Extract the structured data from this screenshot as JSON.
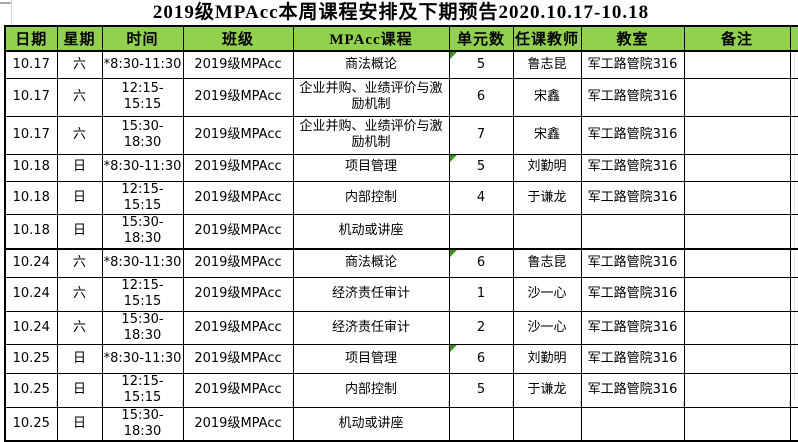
{
  "title": "2019级MPAcc本周课程安排及下期预告2020.10.17-10.18",
  "table": {
    "headers": [
      "日期",
      "星期",
      "时间",
      "班级",
      "MPAcc课程",
      "单元数",
      "任课教师",
      "教室",
      "备注"
    ],
    "rows": [
      {
        "date": "10.17",
        "day": "六",
        "time": "*8:30-11:30",
        "class_name": "2019级MPAcc",
        "course": "商法概论",
        "units": "5",
        "teacher": "鲁志昆",
        "room": "军工路管院316",
        "note": "",
        "units_flag": true
      },
      {
        "date": "10.17",
        "day": "六",
        "time": "12:15-15:15",
        "class_name": "2019级MPAcc",
        "course": "企业并购、业绩评价与激励机制",
        "units": "6",
        "teacher": "宋鑫",
        "room": "军工路管院316",
        "note": "",
        "units_flag": false
      },
      {
        "date": "10.17",
        "day": "六",
        "time": "15:30-18:30",
        "class_name": "2019级MPAcc",
        "course": "企业并购、业绩评价与激励机制",
        "units": "7",
        "teacher": "宋鑫",
        "room": "军工路管院316",
        "note": "",
        "units_flag": false
      },
      {
        "date": "10.18",
        "day": "日",
        "time": "*8:30-11:30",
        "class_name": "2019级MPAcc",
        "course": "项目管理",
        "units": "5",
        "teacher": "刘勤明",
        "room": "军工路管院316",
        "note": "",
        "units_flag": true
      },
      {
        "date": "10.18",
        "day": "日",
        "time": "12:15-15:15",
        "class_name": "2019级MPAcc",
        "course": "内部控制",
        "units": "4",
        "teacher": "于谦龙",
        "room": "军工路管院316",
        "note": "",
        "units_flag": false
      },
      {
        "date": "10.18",
        "day": "日",
        "time": "15:30-18:30",
        "class_name": "2019级MPAcc",
        "course": "机动或讲座",
        "units": "",
        "teacher": "",
        "room": "",
        "note": "",
        "units_flag": false
      },
      {
        "date": "10.24",
        "day": "六",
        "time": "*8:30-11:30",
        "class_name": "2019级MPAcc",
        "course": "商法概论",
        "units": "6",
        "teacher": "鲁志昆",
        "room": "军工路管院316",
        "note": "",
        "units_flag": true
      },
      {
        "date": "10.24",
        "day": "六",
        "time": "12:15-15:15",
        "class_name": "2019级MPAcc",
        "course": "经济责任审计",
        "units": "1",
        "teacher": "沙一心",
        "room": "军工路管院316",
        "note": "",
        "units_flag": false
      },
      {
        "date": "10.24",
        "day": "六",
        "time": "15:30-18:30",
        "class_name": "2019级MPAcc",
        "course": "经济责任审计",
        "units": "2",
        "teacher": "沙一心",
        "room": "军工路管院316",
        "note": "",
        "units_flag": false
      },
      {
        "date": "10.25",
        "day": "日",
        "time": "*8:30-11:30",
        "class_name": "2019级MPAcc",
        "course": "项目管理",
        "units": "6",
        "teacher": "刘勤明",
        "room": "军工路管院316",
        "note": "",
        "units_flag": true
      },
      {
        "date": "10.25",
        "day": "日",
        "time": "12:15-15:15",
        "class_name": "2019级MPAcc",
        "course": "内部控制",
        "units": "5",
        "teacher": "于谦龙",
        "room": "军工路管院316",
        "note": "",
        "units_flag": false
      },
      {
        "date": "10.25",
        "day": "日",
        "time": "15:30-18:30",
        "class_name": "2019级MPAcc",
        "course": "机动或讲座",
        "units": "",
        "teacher": "",
        "room": "",
        "note": "",
        "units_flag": false
      }
    ]
  },
  "colors": {
    "header_bg": "#92D050",
    "border": "#000000",
    "flag_green": "#3F9314"
  }
}
